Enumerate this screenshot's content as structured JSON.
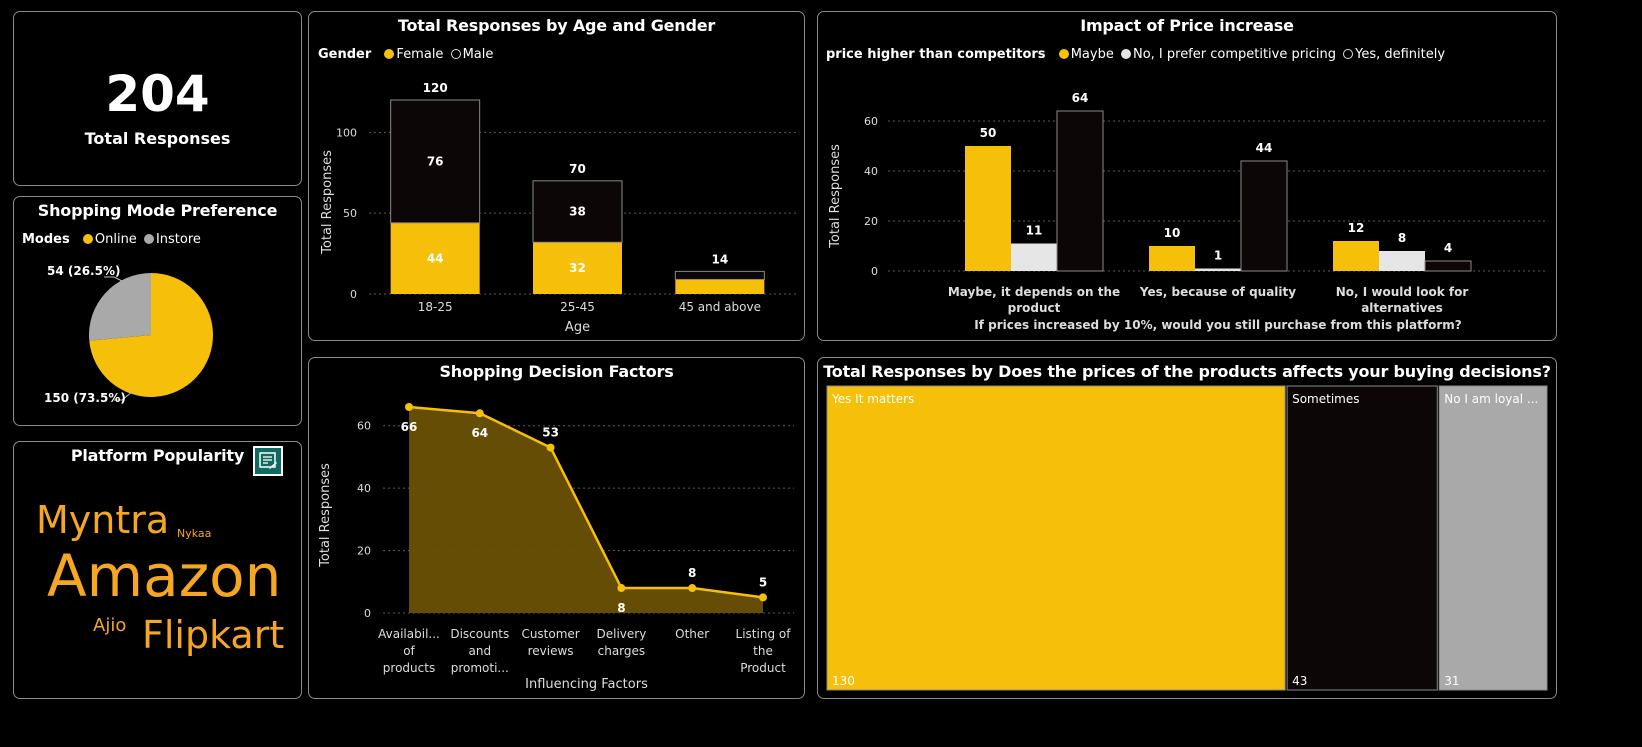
{
  "colors": {
    "accent": "#f5bf0a",
    "dark_bar": "#0d0606",
    "light_bar": "#e6e6e6",
    "grey": "#a9a9a9",
    "word": "#f5a623",
    "area_fill": "#6b5106"
  },
  "kpi": {
    "value": "204",
    "label": "Total Responses"
  },
  "mode": {
    "title": "Shopping Mode Preference",
    "legend_title": "Modes",
    "chart_data": {
      "type": "pie",
      "title": "Shopping Mode Preference",
      "slices": [
        {
          "name": "Online",
          "value": 150,
          "label": "150 (73.5%)",
          "color": "#f5bf0a"
        },
        {
          "name": "Instore",
          "value": 54,
          "label": "54 (26.5%)",
          "color": "#a9a9a9"
        }
      ]
    }
  },
  "platform": {
    "title": "Platform Popularity",
    "icon": "export-data-icon",
    "words": [
      {
        "text": "Myntra"
      },
      {
        "text": "Nykaa"
      },
      {
        "text": "Amazon"
      },
      {
        "text": "Ajio"
      },
      {
        "text": "Flipkart"
      }
    ]
  },
  "age_gender": {
    "title": "Total Responses by Age and Gender",
    "legend_title": "Gender",
    "chart_data": {
      "type": "bar",
      "stacked": true,
      "title": "Total Responses by Age and Gender",
      "categories": [
        "18-25",
        "25-45",
        "45 and above"
      ],
      "series": [
        {
          "name": "Female",
          "values": [
            44,
            32,
            9
          ],
          "color": "#f5bf0a"
        },
        {
          "name": "Male",
          "values": [
            76,
            38,
            5
          ],
          "color": "#0d0606"
        }
      ],
      "totals": [
        120,
        70,
        14
      ],
      "inner_labels": [
        [
          "44",
          "32",
          ""
        ],
        [
          "76",
          "38",
          ""
        ]
      ],
      "xlabel": "Age",
      "ylabel": "Total Responses",
      "ylim": [
        0,
        120
      ],
      "yticks": [
        0,
        50,
        100
      ],
      "grid": true
    }
  },
  "price": {
    "title": "Impact of Price increase",
    "legend_title": "price higher than competitors",
    "chart_data": {
      "type": "bar",
      "title": "Impact of Price increase",
      "categories": [
        "Maybe, it depends on the product",
        "Yes, because of quality",
        "No, I would look for alternatives"
      ],
      "category_lines": [
        [
          "Maybe, it depends on the",
          "product"
        ],
        [
          "Yes, because of quality"
        ],
        [
          "No, I would look for",
          "alternatives"
        ]
      ],
      "series": [
        {
          "name": "Maybe",
          "values": [
            50,
            10,
            12
          ],
          "color": "#f5bf0a"
        },
        {
          "name": "No, I prefer competitive pricing",
          "values": [
            11,
            1,
            8
          ],
          "color": "#e6e6e6"
        },
        {
          "name": "Yes, definitely",
          "values": [
            64,
            44,
            4
          ],
          "color": "#0d0606"
        }
      ],
      "xlabel": "If prices increased by 10%, would you still purchase from this platform?",
      "ylabel": "Total Responses",
      "ylim": [
        0,
        64
      ],
      "yticks": [
        0,
        20,
        40,
        60
      ],
      "grid": true
    }
  },
  "factors": {
    "title": "Shopping Decision Factors",
    "chart_data": {
      "type": "area",
      "title": "Shopping Decision Factors",
      "categories": [
        "Availability of products",
        "Discounts and promotions",
        "Customer reviews",
        "Delivery charges",
        "Other",
        "Listing of the Product"
      ],
      "category_lines": [
        [
          "Availabil...",
          "of",
          "products"
        ],
        [
          "Discounts",
          "and",
          "promoti..."
        ],
        [
          "Customer",
          "reviews"
        ],
        [
          "Delivery",
          "charges"
        ],
        [
          "Other"
        ],
        [
          "Listing of",
          "the",
          "Product"
        ]
      ],
      "values": [
        66,
        64,
        53,
        8,
        8,
        5
      ],
      "label_pos": [
        "below",
        "below",
        "above",
        "below",
        "above",
        "above"
      ],
      "xlabel": "Influencing Factors",
      "ylabel": "Total Responses",
      "ylim": [
        0,
        66
      ],
      "yticks": [
        0,
        20,
        40,
        60
      ],
      "grid": true
    }
  },
  "treemap": {
    "title": "Total Responses by Does the prices of the products affects your buying decisions?",
    "chart_data": {
      "type": "treemap",
      "title": "Total Responses by Does the prices of the products affects your buying decisions?",
      "items": [
        {
          "name": "Yes It matters",
          "value": 130,
          "color": "#f5bf0a"
        },
        {
          "name": "Sometimes",
          "value": 43,
          "color": "#0d0606"
        },
        {
          "name": "No I am loyal ...",
          "value": 31,
          "color": "#a9a9a9"
        }
      ]
    }
  }
}
